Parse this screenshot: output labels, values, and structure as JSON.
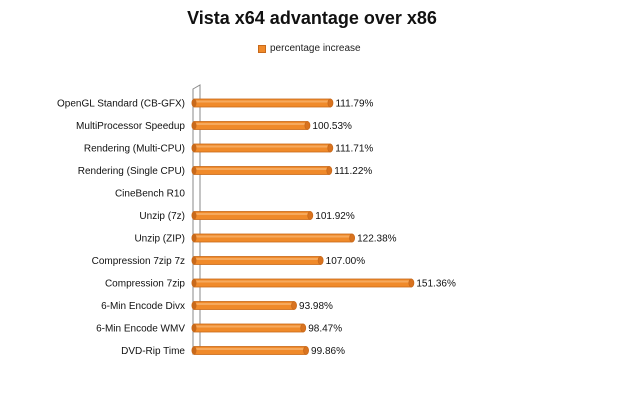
{
  "chart_data": {
    "type": "bar",
    "orientation": "horizontal",
    "title": "Vista x64 advantage over x86",
    "categories": [
      "OpenGL Standard (CB-GFX)",
      "MultiProcessor Speedup",
      "Rendering (Multi-CPU)",
      "Rendering (Single CPU)",
      "CineBench R10",
      "Unzip (7z)",
      "Unzip (ZIP)",
      "Compression 7zip 7z",
      "Compression 7zip",
      "6-Min Encode Divx",
      "6-Min Encode WMV",
      "DVD-Rip Time"
    ],
    "series": [
      {
        "name": "percentage increase",
        "values": [
          111.79,
          100.53,
          111.71,
          111.22,
          null,
          101.92,
          122.38,
          107.0,
          151.36,
          93.98,
          98.47,
          99.86
        ],
        "labels": [
          "111.79%",
          "100.53%",
          "111.71%",
          "111.22%",
          "",
          "101.92%",
          "122.38%",
          "107.00%",
          "151.36%",
          "93.98%",
          "98.47%",
          "99.86%"
        ]
      }
    ],
    "xlim": [
      0,
      160
    ],
    "grid": false,
    "legend_position": "top",
    "colors": {
      "bar": "#f08a2a",
      "bar_dark": "#c8691a"
    }
  }
}
